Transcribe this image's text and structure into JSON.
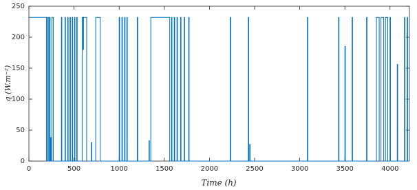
{
  "chart_data": {
    "type": "line",
    "xlabel": "Time (h)",
    "ylabel": "q (W.m⁻²)",
    "color": "#0072bd",
    "x": [
      0,
      195,
      195,
      205,
      205,
      215,
      215,
      225,
      225,
      235,
      235,
      240,
      240,
      245,
      245,
      255,
      255,
      270,
      270,
      360,
      360,
      365,
      365,
      400,
      400,
      405,
      405,
      430,
      430,
      435,
      435,
      455,
      455,
      460,
      460,
      480,
      480,
      485,
      485,
      505,
      505,
      510,
      510,
      530,
      530,
      535,
      535,
      590,
      590,
      600,
      600,
      605,
      605,
      640,
      640,
      690,
      690,
      695,
      695,
      740,
      740,
      790,
      790,
      1000,
      1000,
      1005,
      1005,
      1030,
      1030,
      1035,
      1035,
      1060,
      1060,
      1065,
      1065,
      1085,
      1085,
      1090,
      1090,
      1200,
      1200,
      1205,
      1205,
      1330,
      1330,
      1335,
      1335,
      1350,
      1350,
      1560,
      1560,
      1580,
      1580,
      1585,
      1585,
      1610,
      1610,
      1615,
      1615,
      1640,
      1640,
      1645,
      1645,
      1680,
      1680,
      1685,
      1685,
      1720,
      1720,
      1725,
      1725,
      1770,
      1770,
      1775,
      1775,
      2230,
      2230,
      2235,
      2235,
      2430,
      2430,
      2435,
      2435,
      2445,
      2445,
      2450,
      2450,
      3085,
      3085,
      3090,
      3090,
      3430,
      3430,
      3435,
      3435,
      3500,
      3500,
      3505,
      3505,
      3580,
      3580,
      3585,
      3585,
      3740,
      3740,
      3745,
      3745,
      3850,
      3850,
      3880,
      3880,
      3900,
      3900,
      3930,
      3930,
      3950,
      3950,
      3975,
      3975,
      4000,
      4000,
      4005,
      4005,
      4080,
      4080,
      4085,
      4085,
      4160,
      4160,
      4165,
      4165,
      4190,
      4190,
      4195,
      4195,
      4215
    ],
    "values": [
      232,
      232,
      0,
      0,
      232,
      232,
      0,
      0,
      232,
      232,
      0,
      0,
      38,
      38,
      0,
      0,
      232,
      232,
      0,
      0,
      232,
      232,
      0,
      0,
      232,
      232,
      0,
      0,
      232,
      232,
      0,
      0,
      232,
      232,
      0,
      0,
      232,
      232,
      0,
      0,
      232,
      232,
      0,
      0,
      232,
      232,
      0,
      0,
      232,
      232,
      180,
      180,
      232,
      232,
      0,
      0,
      30,
      30,
      0,
      0,
      232,
      232,
      0,
      0,
      232,
      232,
      0,
      0,
      232,
      232,
      0,
      0,
      232,
      232,
      0,
      0,
      232,
      232,
      0,
      0,
      232,
      232,
      0,
      0,
      33,
      33,
      0,
      0,
      232,
      232,
      0,
      0,
      232,
      232,
      0,
      0,
      232,
      232,
      0,
      0,
      232,
      232,
      0,
      0,
      232,
      232,
      0,
      0,
      232,
      232,
      0,
      0,
      232,
      232,
      0,
      0,
      232,
      232,
      0,
      0,
      232,
      232,
      0,
      0,
      27,
      27,
      0,
      0,
      232,
      232,
      0,
      0,
      232,
      232,
      0,
      0,
      185,
      185,
      0,
      0,
      232,
      232,
      0,
      0,
      232,
      232,
      0,
      0,
      232,
      232,
      0,
      0,
      232,
      232,
      0,
      0,
      232,
      232,
      0,
      0,
      232,
      232,
      0,
      0,
      156,
      156,
      0,
      0,
      232,
      232,
      0,
      0,
      232,
      232,
      0,
      0
    ],
    "xlim": [
      0,
      4215
    ],
    "xticks": [
      0,
      500,
      1000,
      1500,
      2000,
      2500,
      3000,
      3500,
      4000
    ],
    "ylim": [
      0,
      250
    ],
    "yticks": [
      0,
      50,
      100,
      150,
      200,
      250
    ]
  }
}
